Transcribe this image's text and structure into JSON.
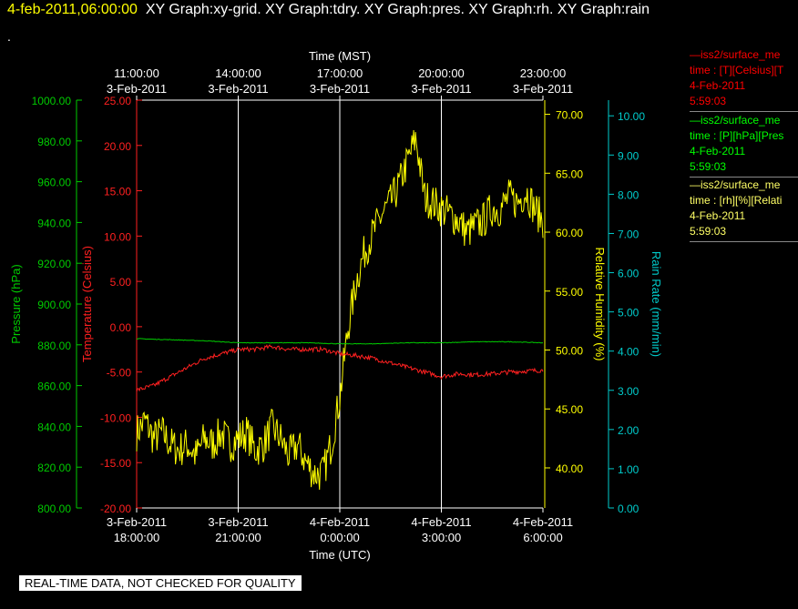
{
  "header": {
    "timestamp": "4-feb-2011,06:00:00",
    "graphs": "XY Graph:xy-grid.  XY Graph:tdry.  XY Graph:pres.  XY Graph:rh.  XY Graph:rain",
    "dot": "."
  },
  "footer": {
    "warning": "REAL-TIME DATA, NOT CHECKED FOR QUALITY"
  },
  "legend": [
    {
      "line1": "—iss2/surface_me",
      "line2": "time : [T][Celsius][T",
      "line3": "4-Feb-2011",
      "line4": "5:59:03",
      "color": "#ff0000"
    },
    {
      "line1": "—iss2/surface_me",
      "line2": "time : [P][hPa][Pres",
      "line3": "4-Feb-2011",
      "line4": "5:59:03",
      "color": "#00ff00"
    },
    {
      "line1": "—iss2/surface_me",
      "line2": "time : [rh][%][Relati",
      "line3": "4-Feb-2011",
      "line4": "5:59:03",
      "color": "#ffff66"
    }
  ],
  "chart_data": {
    "type": "line",
    "title": "",
    "top_axis": {
      "label": "Time (MST)",
      "ticks": [
        {
          "time": "11:00:00",
          "date": "3-Feb-2011"
        },
        {
          "time": "14:00:00",
          "date": "3-Feb-2011"
        },
        {
          "time": "17:00:00",
          "date": "3-Feb-2011"
        },
        {
          "time": "20:00:00",
          "date": "3-Feb-2011"
        },
        {
          "time": "23:00:00",
          "date": "3-Feb-2011"
        }
      ]
    },
    "bottom_axis": {
      "label": "Time (UTC)",
      "ticks": [
        {
          "date": "3-Feb-2011",
          "time": "18:00:00"
        },
        {
          "date": "3-Feb-2011",
          "time": "21:00:00"
        },
        {
          "date": "4-Feb-2011",
          "time": "0:00:00"
        },
        {
          "date": "4-Feb-2011",
          "time": "3:00:00"
        },
        {
          "date": "4-Feb-2011",
          "time": "6:00:00"
        }
      ],
      "range_utc": [
        "3-Feb-2011 18:00",
        "4-Feb-2011 06:00"
      ]
    },
    "grid": true,
    "axes": {
      "pressure": {
        "label": "Pressure (hPa)",
        "range": [
          800,
          1000
        ],
        "ticks": [
          "800.00",
          "820.00",
          "840.00",
          "860.00",
          "880.00",
          "900.00",
          "920.00",
          "940.00",
          "960.00",
          "980.00",
          "1000.00"
        ],
        "color": "#00cc00"
      },
      "temperature": {
        "label": "Temperature (Celsius)",
        "range": [
          -20,
          25
        ],
        "ticks": [
          "-20.00",
          "-15.00",
          "-10.00",
          "-5.00",
          "0.00",
          "5.00",
          "10.00",
          "15.00",
          "20.00",
          "25.00"
        ],
        "color": "#ff2020"
      },
      "humidity": {
        "label": "Relative Humidity (%)",
        "range": [
          36.6,
          71.2
        ],
        "ticks": [
          "40.00",
          "45.00",
          "50.00",
          "55.00",
          "60.00",
          "65.00",
          "70.00"
        ],
        "color": "#ffff00"
      },
      "rain": {
        "label": "Rain Rate (mm/min)",
        "range": [
          0,
          10.4
        ],
        "ticks": [
          "0.00",
          "1.00",
          "2.00",
          "3.00",
          "4.00",
          "5.00",
          "6.00",
          "7.00",
          "8.00",
          "9.00",
          "10.00"
        ],
        "color": "#00cccc"
      }
    },
    "series": [
      {
        "axis": "humidity",
        "color": "#ffff00",
        "x": [
          0,
          0.25,
          0.5,
          0.75,
          1,
          1.25,
          1.5,
          1.75,
          2,
          2.25,
          2.5,
          2.75,
          3,
          3.25,
          3.5,
          3.75,
          4,
          4.25,
          4.5,
          4.75,
          5,
          5.25,
          5.5,
          5.75,
          6,
          6.25,
          6.5,
          6.75,
          7,
          7.25,
          7.5,
          7.75,
          8,
          8.25,
          8.5,
          8.75,
          9,
          9.25,
          9.5,
          9.75,
          10,
          10.25,
          10.5,
          10.75,
          11,
          11.25,
          11.5,
          11.75,
          12
        ],
        "y": [
          43.0,
          44.0,
          42.5,
          43.0,
          42.0,
          41.5,
          42.0,
          41.0,
          42.5,
          42.0,
          43.0,
          42.0,
          42.5,
          43.0,
          41.5,
          42.0,
          43.5,
          42.5,
          41.0,
          42.0,
          40.5,
          39.5,
          39.5,
          42.0,
          46.0,
          52.0,
          56.0,
          58.5,
          60.0,
          61.5,
          62.5,
          64.0,
          66.0,
          68.0,
          63.0,
          62.5,
          62.0,
          61.5,
          61.0,
          60.0,
          60.5,
          61.0,
          62.0,
          62.0,
          63.0,
          62.5,
          63.5,
          62.0,
          61.0
        ]
      },
      {
        "axis": "temperature",
        "color": "#ff2020",
        "x": [
          0,
          0.5,
          1,
          1.5,
          2,
          2.5,
          3,
          3.5,
          4,
          4.5,
          5,
          5.5,
          6,
          6.5,
          7,
          7.5,
          8,
          8.5,
          9,
          9.5,
          10,
          10.5,
          11,
          11.5,
          12
        ],
        "y": [
          -7.0,
          -6.5,
          -5.5,
          -4.5,
          -3.5,
          -3.0,
          -2.5,
          -2.5,
          -2.2,
          -2.5,
          -2.5,
          -2.5,
          -3.0,
          -3.2,
          -3.5,
          -4.0,
          -4.5,
          -5.0,
          -5.5,
          -5.2,
          -5.3,
          -5.2,
          -5.0,
          -4.9,
          -4.8
        ]
      },
      {
        "axis": "pressure",
        "color": "#00cc00",
        "x": [
          0,
          1,
          2,
          3,
          4,
          5,
          6,
          7,
          8,
          9,
          10,
          11,
          12
        ],
        "y": [
          883,
          882.5,
          882,
          881,
          881,
          881,
          880.5,
          880.5,
          881,
          881,
          881.5,
          881.5,
          881
        ]
      }
    ]
  }
}
